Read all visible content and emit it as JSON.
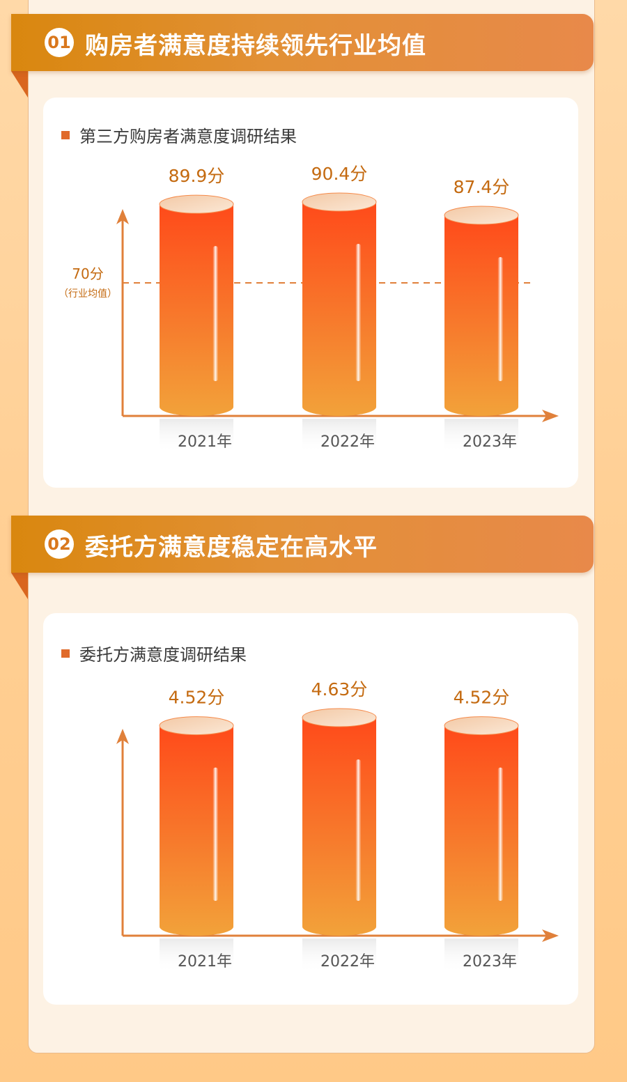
{
  "sections": [
    {
      "number": "01",
      "title": "购房者满意度持续领先行业均值",
      "chart_label": "第三方购房者满意度调研结果"
    },
    {
      "number": "02",
      "title": "委托方满意度稳定在高水平",
      "chart_label": "委托方满意度调研结果"
    }
  ],
  "colors": {
    "banner_start": "#d9870f",
    "banner_end": "#e8894a",
    "axis": "#e0803a",
    "value_text": "#c46a10",
    "bar_top": "#ff4a1a",
    "bar_bottom": "#f2a23a"
  },
  "chart_data": [
    {
      "type": "bar",
      "title": "第三方购房者满意度调研结果",
      "categories": [
        "2021年",
        "2022年",
        "2023年"
      ],
      "values": [
        89.9,
        90.4,
        87.4
      ],
      "value_labels": [
        "89.9分",
        "90.4分",
        "87.4分"
      ],
      "reference_line": {
        "value": 70,
        "label": "70分",
        "sublabel": "（行业均值）"
      }
    },
    {
      "type": "bar",
      "title": "委托方满意度调研结果",
      "categories": [
        "2021年",
        "2022年",
        "2023年"
      ],
      "values": [
        4.52,
        4.63,
        4.52
      ],
      "value_labels": [
        "4.52分",
        "4.63分",
        "4.52分"
      ]
    }
  ]
}
